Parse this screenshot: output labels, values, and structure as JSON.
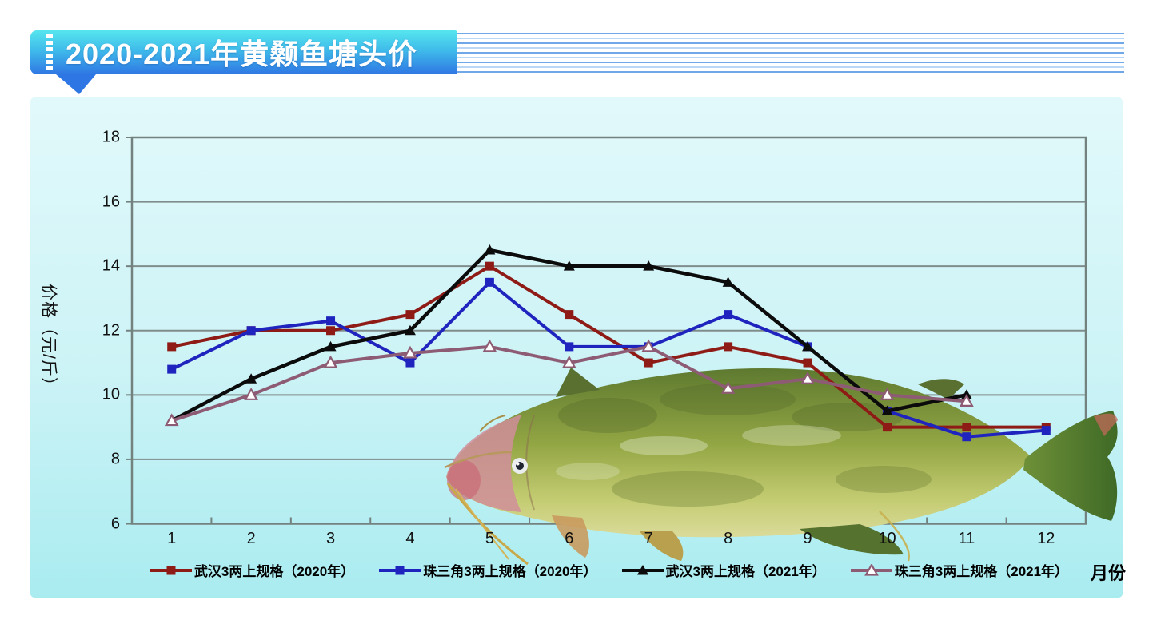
{
  "banner": {
    "title": "2020-2021年黄颡鱼塘头价"
  },
  "chart_data": {
    "type": "line",
    "title": "2020-2021年黄颡鱼塘头价",
    "xlabel": "月份",
    "ylabel": "价格（元/斤）",
    "x": [
      1,
      2,
      3,
      4,
      5,
      6,
      7,
      8,
      9,
      10,
      11,
      12
    ],
    "ylim": [
      6,
      18
    ],
    "yticks": [
      6,
      8,
      10,
      12,
      14,
      16,
      18
    ],
    "grid": "horizontal-major",
    "legend_position": "bottom",
    "series": [
      {
        "name": "武汉3两上规格（2020年）",
        "color": "#8E1B16",
        "marker": "square",
        "values": [
          11.5,
          12,
          12,
          12.5,
          14,
          12.5,
          11,
          11.5,
          11,
          9,
          9,
          9
        ]
      },
      {
        "name": "珠三角3两上规格（2020年）",
        "color": "#2024BE",
        "marker": "square",
        "values": [
          10.8,
          12,
          12.3,
          11,
          13.5,
          11.5,
          11.5,
          12.5,
          11.5,
          9.5,
          8.7,
          8.9
        ]
      },
      {
        "name": "武汉3两上规格（2021年）",
        "color": "#0B0B0B",
        "marker": "triangle",
        "values": [
          9.2,
          10.5,
          11.5,
          12,
          14.5,
          14,
          14,
          13.5,
          11.5,
          9.5,
          10,
          null
        ]
      },
      {
        "name": "珠三角3两上规格（2021年）",
        "color": "#8D5C74",
        "marker": "triangle-open",
        "values": [
          9.2,
          10,
          11,
          11.3,
          11.5,
          11,
          11.5,
          10.2,
          10.5,
          10,
          9.8,
          null
        ]
      }
    ],
    "decoration": "yellow-catfish-photo-overlay"
  }
}
